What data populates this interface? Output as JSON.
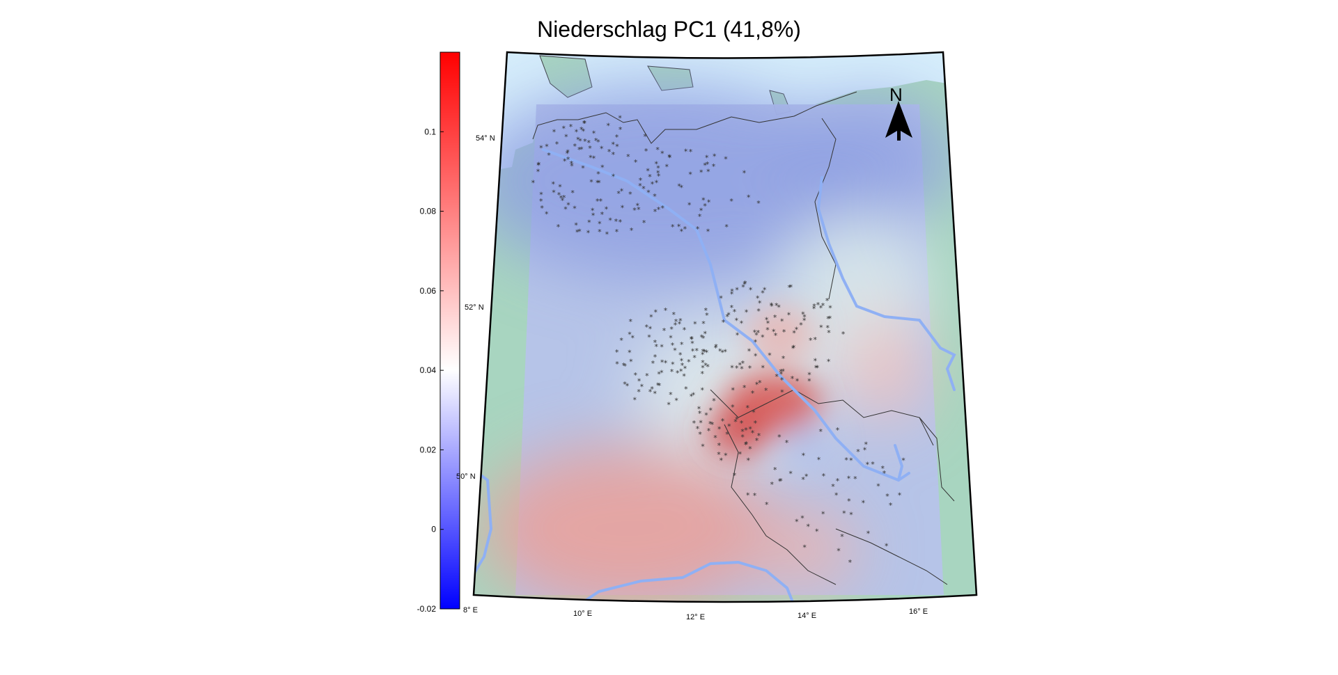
{
  "title": "Niederschlag PC1 (41,8%)",
  "colorbar": {
    "ticks": [
      "0.1",
      "0.08",
      "0.06",
      "0.04",
      "0.02",
      "0",
      "-0.02"
    ],
    "tick_values": [
      0.1,
      0.08,
      0.06,
      0.04,
      0.02,
      0,
      -0.02
    ],
    "range": [
      -0.02,
      0.12
    ],
    "colors": {
      "low": "#0000ff",
      "mid": "#ffffff",
      "high": "#ff0000"
    }
  },
  "graticule": {
    "lat_labels": [
      "54° N",
      "52° N",
      "50° N"
    ],
    "lon_labels": [
      "8° E",
      "10° E",
      "12° E",
      "14° E",
      "16° E"
    ]
  },
  "north_arrow": {
    "label": "N"
  },
  "colors": {
    "sea": "#d6eefb",
    "land": "#a8d5c0",
    "river": "#8fb0f4",
    "border": "#333333",
    "station": "#333333"
  },
  "stations": {
    "symbol": "*"
  }
}
